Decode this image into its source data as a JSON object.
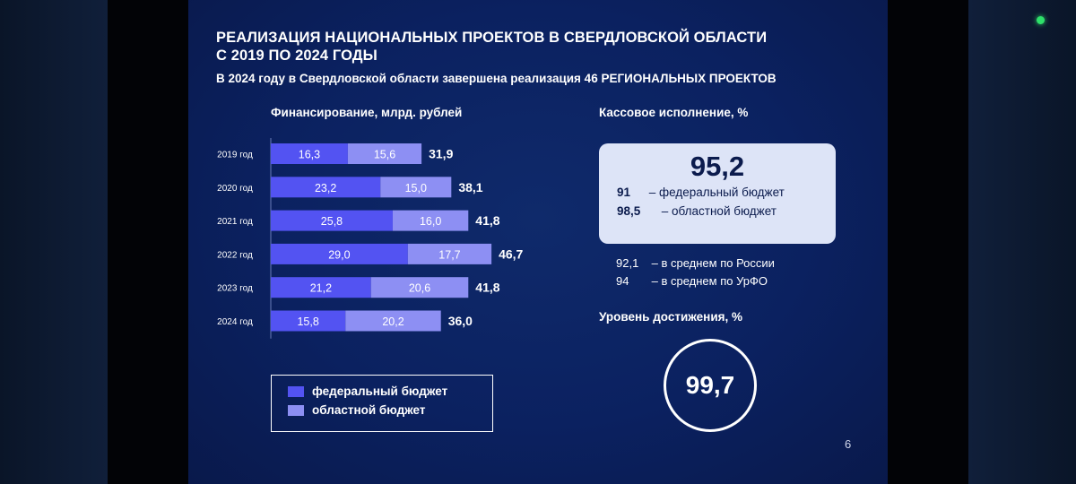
{
  "slide": {
    "title_line1": "РЕАЛИЗАЦИЯ НАЦИОНАЛЬНЫХ ПРОЕКТОВ В СВЕРДЛОВСКОЙ ОБЛАСТИ",
    "title_line2": "С 2019 ПО 2024 ГОДЫ",
    "subtitle": "В 2024 году в Свердловской области завершена реализация 46 РЕГИОНАЛЬНЫХ ПРОЕКТОВ",
    "page_number": "6"
  },
  "chart_data": {
    "type": "bar",
    "orientation": "horizontal",
    "stacked": true,
    "title": "Финансирование, млрд. рублей",
    "categories": [
      "2019 год",
      "2020 год",
      "2021 год",
      "2022 год",
      "2023 год",
      "2024 год"
    ],
    "series": [
      {
        "name": "федеральный бюджет",
        "values": [
          16.3,
          23.2,
          25.8,
          29.0,
          21.2,
          15.8
        ],
        "labels": [
          "16,3",
          "23,2",
          "25,8",
          "29,0",
          "21,2",
          "15,8"
        ],
        "color": "#5353f2"
      },
      {
        "name": "областной бюджет",
        "values": [
          15.6,
          15.0,
          16.0,
          17.7,
          20.6,
          20.2
        ],
        "labels": [
          "15,6",
          "15,0",
          "16,0",
          "17,7",
          "20,6",
          "20,2"
        ],
        "color": "#8d8ff3"
      }
    ],
    "totals": [
      "31,9",
      "38,1",
      "41,8",
      "46,7",
      "41,8",
      "36,0"
    ],
    "legend_position": "bottom-left",
    "grid": false
  },
  "legend": {
    "federal_label": "федеральный бюджет",
    "regional_label": "областной бюджет",
    "federal_color": "#5353f2",
    "regional_color": "#8d8ff3"
  },
  "cash_execution": {
    "title": "Кассовое исполнение, %",
    "total": "95,2",
    "federal_value": "91",
    "federal_label": "– федеральный бюджет",
    "regional_value": "98,5",
    "regional_label": "– областной бюджет",
    "russia_value": "92,1",
    "russia_label": "– в среднем по России",
    "urfo_value": "94",
    "urfo_label": "– в среднем по УрФО"
  },
  "achievement": {
    "title": "Уровень достижения, %",
    "value": "99,7"
  }
}
